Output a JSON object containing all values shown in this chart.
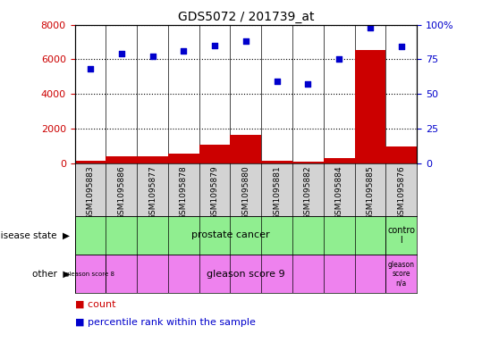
{
  "title": "GDS5072 / 201739_at",
  "samples": [
    "GSM1095883",
    "GSM1095886",
    "GSM1095877",
    "GSM1095878",
    "GSM1095879",
    "GSM1095880",
    "GSM1095881",
    "GSM1095882",
    "GSM1095884",
    "GSM1095885",
    "GSM1095876"
  ],
  "counts": [
    150,
    400,
    380,
    550,
    1050,
    1650,
    130,
    80,
    280,
    6550,
    950
  ],
  "percentiles": [
    68,
    79,
    77,
    81,
    85,
    88,
    59,
    57,
    75,
    98,
    84
  ],
  "ylim_left": [
    0,
    8000
  ],
  "ylim_right": [
    0,
    100
  ],
  "yticks_left": [
    0,
    2000,
    4000,
    6000,
    8000
  ],
  "yticks_right": [
    0,
    25,
    50,
    75,
    100
  ],
  "bar_color": "#cc0000",
  "dot_color": "#0000cc",
  "light_green": "#90ee90",
  "violet": "#ee82ee",
  "light_gray": "#d3d3d3",
  "background_color": "#ffffff",
  "grid_color": "#000000"
}
